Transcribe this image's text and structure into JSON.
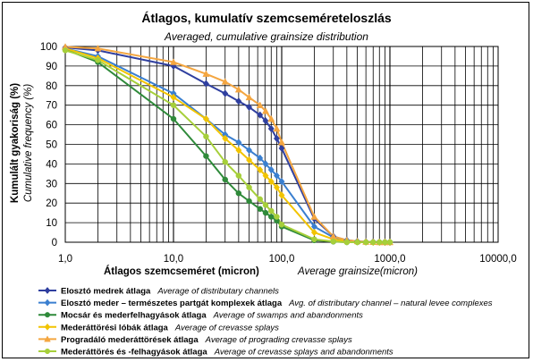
{
  "chart_data": {
    "type": "line",
    "title": "Átlagos, kumulatív szemcseméreteloszlás",
    "subtitle": "Averaged, cumulative grainsize distribution",
    "xlabel": "Átlagos szemcseméret (micron)",
    "xlabel_en": "Average grainsize(micron)",
    "ylabel": "Kumulált gyakoriság (%)",
    "ylabel_en": "Cumulative frequency (%)",
    "x_scale": "log",
    "xlim": [
      1,
      10000
    ],
    "ylim": [
      0,
      100
    ],
    "x_ticks": [
      "1,0",
      "10,0",
      "100,0",
      "1000,0",
      "10000,0"
    ],
    "y_ticks": [
      "0",
      "10",
      "20",
      "30",
      "40",
      "50",
      "60",
      "70",
      "80",
      "90",
      "100"
    ],
    "grid": true,
    "legend_position": "bottom",
    "series": [
      {
        "name": "Elosztó medrek átlaga",
        "name_en": "Average of distributary channels",
        "color": "#2f3f9f",
        "marker": "diamond",
        "x": [
          1,
          2,
          10,
          20,
          30,
          40,
          50,
          63,
          71,
          80,
          90,
          100,
          200,
          300,
          400,
          500,
          600,
          700,
          800,
          900,
          1000
        ],
        "y": [
          99.5,
          98,
          90,
          81,
          76,
          72,
          69,
          65,
          62,
          58,
          53,
          48,
          12,
          3,
          1,
          0.4,
          0.2,
          0.1,
          0,
          0,
          0
        ]
      },
      {
        "name": "Elosztó meder – természetes partgát komplexek átlaga",
        "name_en": "Avg. of distributary channel –  natural levee complexes",
        "color": "#3a7fd0",
        "marker": "diamond",
        "x": [
          1,
          2,
          10,
          20,
          30,
          40,
          50,
          63,
          71,
          80,
          90,
          100,
          200,
          300,
          400,
          500,
          600,
          700,
          800,
          900,
          1000
        ],
        "y": [
          99,
          95,
          76,
          63,
          55,
          51,
          47,
          43,
          40,
          37,
          34,
          31,
          8,
          2.5,
          1,
          0.5,
          0.2,
          0.1,
          0,
          0,
          0
        ]
      },
      {
        "name": "Mocsár és mederfelhagyások átlaga",
        "name_en": "Average of swamps and abandonments",
        "color": "#2f8a3a",
        "marker": "circle",
        "x": [
          1,
          2,
          10,
          20,
          30,
          40,
          50,
          63,
          71,
          80,
          90,
          100,
          200,
          300,
          400,
          500,
          600,
          700,
          800,
          900,
          1000
        ],
        "y": [
          98.5,
          92,
          63,
          44,
          32,
          25,
          21,
          17,
          15,
          13,
          11,
          8,
          1,
          0.3,
          0,
          0,
          0,
          0,
          0,
          0,
          0
        ]
      },
      {
        "name": "Mederáttörési lóbák átlaga",
        "name_en": "Average of crevasse splays",
        "color": "#f2c400",
        "marker": "diamond",
        "x": [
          1,
          2,
          10,
          20,
          30,
          40,
          50,
          63,
          71,
          80,
          90,
          100,
          200,
          300,
          400,
          500,
          600,
          700,
          800,
          900,
          1000
        ],
        "y": [
          99,
          94,
          74,
          63,
          53,
          47,
          42,
          37,
          34,
          31,
          28,
          24,
          5,
          1.5,
          0.5,
          0.2,
          0.1,
          0,
          0,
          0,
          0
        ]
      },
      {
        "name": "Progradáló mederáttörések átlaga",
        "name_en": "Average of prograding crevasse splays",
        "color": "#f4a640",
        "marker": "triangle",
        "x": [
          1,
          2,
          10,
          20,
          30,
          40,
          50,
          63,
          71,
          80,
          90,
          100,
          200,
          300,
          400,
          500,
          600,
          700,
          800,
          900,
          1000
        ],
        "y": [
          99.8,
          99,
          92,
          86,
          82,
          78,
          74,
          70,
          67,
          63,
          58,
          51,
          13,
          3,
          1,
          0.5,
          0.2,
          0.1,
          0,
          0,
          0
        ]
      },
      {
        "name": "Mederáttörés  és -felhagyások átlaga",
        "name_en": "Average of crevasse splays and abandonments",
        "color": "#a6cf3a",
        "marker": "circle",
        "x": [
          1,
          2,
          10,
          20,
          30,
          40,
          50,
          63,
          71,
          80,
          90,
          100,
          200,
          300,
          400,
          500,
          600,
          700,
          800,
          900,
          1000
        ],
        "y": [
          98,
          93,
          70,
          54,
          41,
          34,
          28,
          22,
          19,
          16,
          13,
          9,
          1.5,
          0.4,
          0,
          0,
          0,
          0,
          0,
          0,
          0
        ]
      }
    ]
  }
}
